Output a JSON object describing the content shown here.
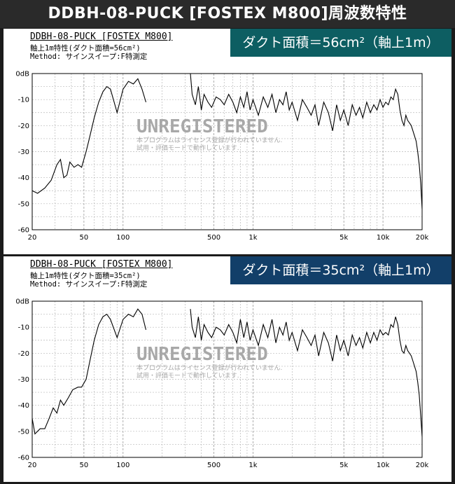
{
  "page_title": "DDBH-08-PUCK [FOSTEX M800]周波数特性",
  "colors": {
    "badge_top": "#0d5e62",
    "badge_bottom": "#123f69",
    "trace": "#000000",
    "grid": "#b8b8b8"
  },
  "panels": [
    {
      "header_title": "DDBH-08-PUCK [FOSTEX M800]",
      "header_sub1": "軸上1m特性(ダクト面積=56cm²)",
      "header_sub2": "Method: サインスイープ:F特測定",
      "badge": "ダクト面積＝56cm²（軸上1m）",
      "watermark": "UNREGISTERED",
      "notice1": "本プログラムはライセンス登録が行われていません.",
      "notice2": "試用・評価モードで動作しています."
    },
    {
      "header_title": "DDBH-08-PUCK [FOSTEX M800]",
      "header_sub1": "軸上1m特性(ダクト面積=35cm²)",
      "header_sub2": "Method: サインスイープ:F特測定",
      "badge": "ダクト面積＝35cm²（軸上1m）",
      "watermark": "UNREGISTERED",
      "notice1": "本プログラムはライセンス登録が行われていません.",
      "notice2": "試用・評価モードで動作しています."
    }
  ],
  "chart_data": [
    {
      "type": "line",
      "xscale": "log",
      "xlim": [
        20,
        20000
      ],
      "ylim": [
        -60,
        0
      ],
      "xticks": [
        20,
        50,
        100,
        500,
        1000,
        5000,
        10000,
        20000
      ],
      "xtick_labels": [
        "20",
        "50",
        "100",
        "500",
        "1k",
        "5k",
        "10k",
        "20k"
      ],
      "yticks": [
        0,
        -10,
        -20,
        -30,
        -40,
        -50,
        -60
      ],
      "ytick_labels": [
        "0dB",
        "-10",
        "-20",
        "-30",
        "-40",
        "-50",
        "-60"
      ],
      "grid": true,
      "series": [
        {
          "x": [
            20,
            22,
            25,
            28,
            31,
            33,
            35,
            37,
            39,
            42,
            45,
            48,
            52,
            55,
            60,
            65,
            70,
            75,
            80,
            90,
            100,
            110,
            120,
            130,
            140,
            150
          ],
          "y": [
            -45,
            -46,
            -44,
            -41,
            -35,
            -33,
            -40,
            -39,
            -34,
            -36,
            -35,
            -36,
            -30,
            -25,
            -17,
            -11,
            -7,
            -5,
            -6,
            -15,
            -6,
            -3,
            -4,
            -2,
            -6,
            -11
          ]
        },
        {
          "x": [
            330,
            340,
            360,
            380,
            400,
            420,
            450,
            480,
            520,
            560,
            600,
            650,
            700,
            750,
            800,
            850,
            900,
            950,
            1000,
            1100,
            1200,
            1300,
            1400,
            1500,
            1600,
            1700,
            1800,
            1900,
            2000,
            2200,
            2400,
            2600,
            2800,
            3000,
            3200,
            3500,
            3800,
            4100,
            4400,
            4700,
            5000,
            5400,
            5800,
            6200,
            6600,
            7000,
            7500,
            8000,
            8500,
            9000,
            9500,
            10000,
            10500,
            11000,
            11500,
            12000,
            12500,
            13000,
            13500,
            14000,
            14500,
            15000,
            15500,
            16000,
            16500,
            17000,
            17500,
            18000,
            18500,
            19000,
            19500,
            20000
          ],
          "y": [
            0,
            -8,
            -12,
            -5,
            -14,
            -8,
            -11,
            -13,
            -9,
            -10,
            -12,
            -8,
            -11,
            -15,
            -9,
            -13,
            -7,
            -14,
            -10,
            -16,
            -9,
            -13,
            -8,
            -15,
            -10,
            -12,
            -7,
            -14,
            -11,
            -18,
            -10,
            -13,
            -16,
            -12,
            -20,
            -11,
            -15,
            -22,
            -12,
            -18,
            -14,
            -20,
            -12,
            -16,
            -13,
            -17,
            -11,
            -15,
            -12,
            -14,
            -10,
            -13,
            -11,
            -12,
            -9,
            -10,
            -6,
            -8,
            -14,
            -18,
            -20,
            -16,
            -18,
            -19,
            -20,
            -22,
            -24,
            -26,
            -30,
            -35,
            -42,
            -52
          ]
        }
      ]
    },
    {
      "type": "line",
      "xscale": "log",
      "xlim": [
        20,
        20000
      ],
      "ylim": [
        -60,
        0
      ],
      "xticks": [
        20,
        50,
        100,
        500,
        1000,
        5000,
        10000,
        20000
      ],
      "xtick_labels": [
        "20",
        "50",
        "100",
        "500",
        "1k",
        "5k",
        "10k",
        "20k"
      ],
      "yticks": [
        0,
        -10,
        -20,
        -30,
        -40,
        -50,
        -60
      ],
      "ytick_labels": [
        "0dB",
        "-10",
        "-20",
        "-30",
        "-40",
        "-50",
        "-60"
      ],
      "grid": true,
      "series": [
        {
          "x": [
            20,
            21,
            23,
            25,
            27,
            29,
            31,
            33,
            35,
            38,
            41,
            45,
            48,
            52,
            55,
            60,
            65,
            70,
            75,
            80,
            90,
            100,
            110,
            120,
            130,
            140,
            150
          ],
          "y": [
            -45,
            -51,
            -49,
            -49,
            -45,
            -41,
            -43,
            -38,
            -40,
            -37,
            -34,
            -33,
            -33,
            -30,
            -24,
            -15,
            -9,
            -6,
            -5,
            -7,
            -14,
            -7,
            -5,
            -6,
            -3,
            -5,
            -11
          ]
        },
        {
          "x": [
            330,
            340,
            360,
            380,
            400,
            420,
            450,
            480,
            520,
            560,
            600,
            650,
            700,
            750,
            800,
            850,
            900,
            950,
            1000,
            1100,
            1200,
            1300,
            1400,
            1500,
            1600,
            1700,
            1800,
            1900,
            2000,
            2200,
            2400,
            2600,
            2800,
            3000,
            3200,
            3500,
            3800,
            4100,
            4400,
            4700,
            5000,
            5400,
            5800,
            6200,
            6600,
            7000,
            7500,
            8000,
            8500,
            9000,
            9500,
            10000,
            10500,
            11000,
            11500,
            12000,
            12500,
            13000,
            13500,
            14000,
            14500,
            15000,
            15500,
            16000,
            16500,
            17000,
            17500,
            18000,
            18500,
            19000,
            19500,
            20000
          ],
          "y": [
            -3,
            -10,
            -14,
            -6,
            -15,
            -9,
            -12,
            -14,
            -10,
            -11,
            -13,
            -9,
            -12,
            -16,
            -7,
            -14,
            -8,
            -15,
            -11,
            -17,
            -9,
            -14,
            -7,
            -16,
            -10,
            -13,
            -8,
            -15,
            -12,
            -19,
            -11,
            -14,
            -17,
            -13,
            -21,
            -12,
            -16,
            -23,
            -13,
            -19,
            -15,
            -21,
            -13,
            -17,
            -14,
            -18,
            -12,
            -16,
            -12,
            -15,
            -11,
            -13,
            -12,
            -13,
            -9,
            -10,
            -6,
            -9,
            -15,
            -19,
            -20,
            -17,
            -19,
            -20,
            -21,
            -23,
            -25,
            -27,
            -31,
            -36,
            -44,
            -52
          ]
        }
      ]
    }
  ]
}
